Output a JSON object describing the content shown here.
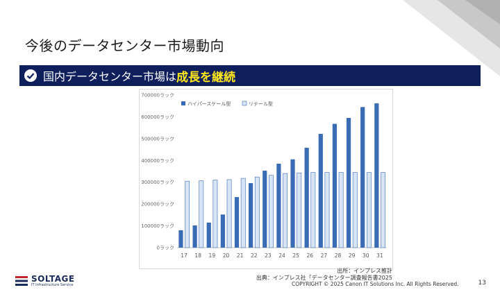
{
  "page_title": "今後のデータセンター市場動向",
  "banner": {
    "text_prefix": "国内データセンター市場は",
    "text_highlight": "成長を継続"
  },
  "chart_data": {
    "type": "bar",
    "title": "",
    "xlabel": "",
    "ylabel": "",
    "categories": [
      "17",
      "18",
      "19",
      "20",
      "21",
      "22",
      "23",
      "24",
      "25",
      "26",
      "27",
      "28",
      "29",
      "30",
      "31"
    ],
    "series": [
      {
        "name": "ハイパースケール型",
        "color": "#3a6bb5",
        "values": [
          80000,
          102000,
          115000,
          152000,
          232000,
          296000,
          353000,
          385000,
          405000,
          458000,
          522000,
          568000,
          595000,
          645000,
          662000
        ]
      },
      {
        "name": "リテール型",
        "color": "#d6e4f5",
        "values": [
          305000,
          307000,
          310000,
          312000,
          318000,
          324000,
          332000,
          340000,
          343000,
          345000,
          345000,
          345000,
          345000,
          345000,
          345000
        ]
      }
    ],
    "ylim": [
      0,
      700000
    ],
    "yticks": [
      0,
      100000,
      200000,
      300000,
      400000,
      500000,
      600000,
      700000
    ],
    "tick_suffix": "ラック",
    "legend_position": "top-left"
  },
  "source": {
    "estimate": "出所：インプレス推計",
    "origin": "出典：インプレス社「データセンター調査報告書2025"
  },
  "footer": {
    "copyright": "COPYRIGHT © 2025 Canon IT Solutions Inc. All Rights Reserved.",
    "page_number": "13",
    "brand": "SOLTAGE",
    "tagline": "IT Infrastructure Service"
  }
}
